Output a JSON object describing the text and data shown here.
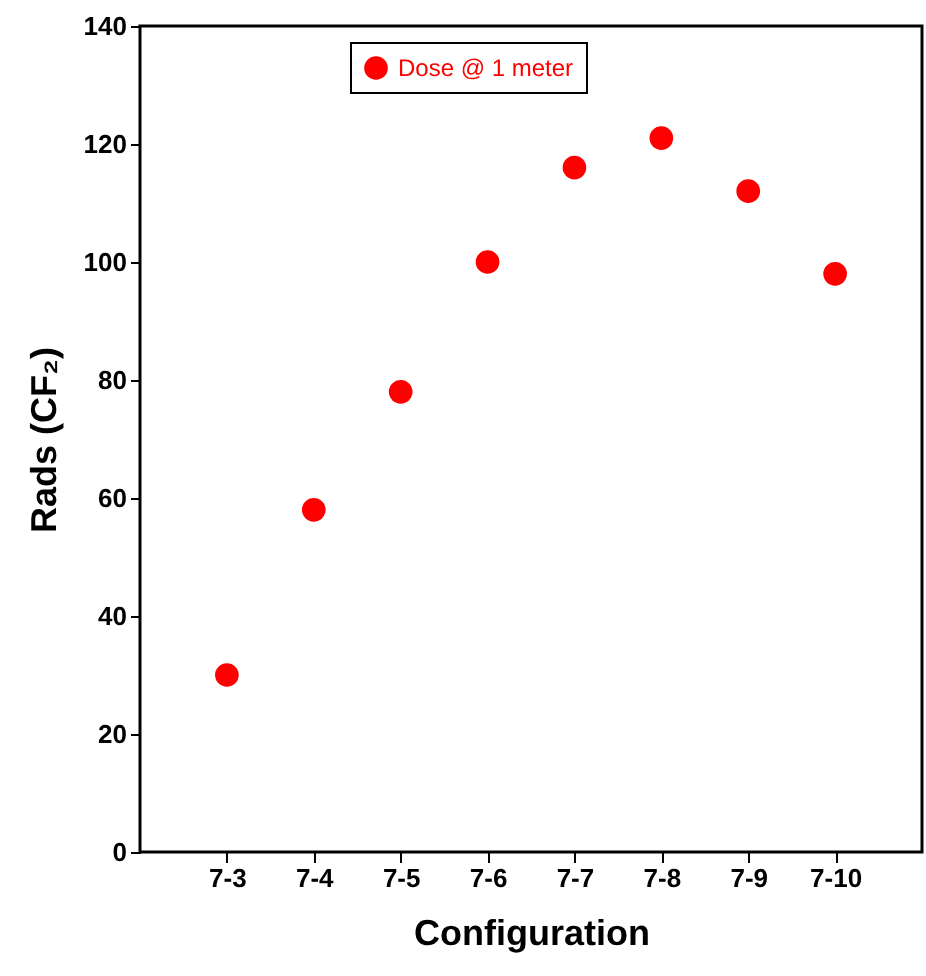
{
  "chart_data": {
    "type": "scatter",
    "xlabel": "Configuration",
    "ylabel": "Rads (CF₂)",
    "categories": [
      "7-3",
      "7-4",
      "7-5",
      "7-6",
      "7-7",
      "7-8",
      "7-9",
      "7-10"
    ],
    "series": [
      {
        "name": "Dose @ 1 meter",
        "color": "#ff0000",
        "values": [
          30,
          58,
          78,
          100,
          116,
          121,
          112,
          98
        ]
      }
    ],
    "ylim": [
      0,
      140
    ],
    "yticks": [
      0,
      20,
      40,
      60,
      80,
      100,
      120,
      140
    ],
    "marker": "circle",
    "legend": "top",
    "grid": false
  }
}
